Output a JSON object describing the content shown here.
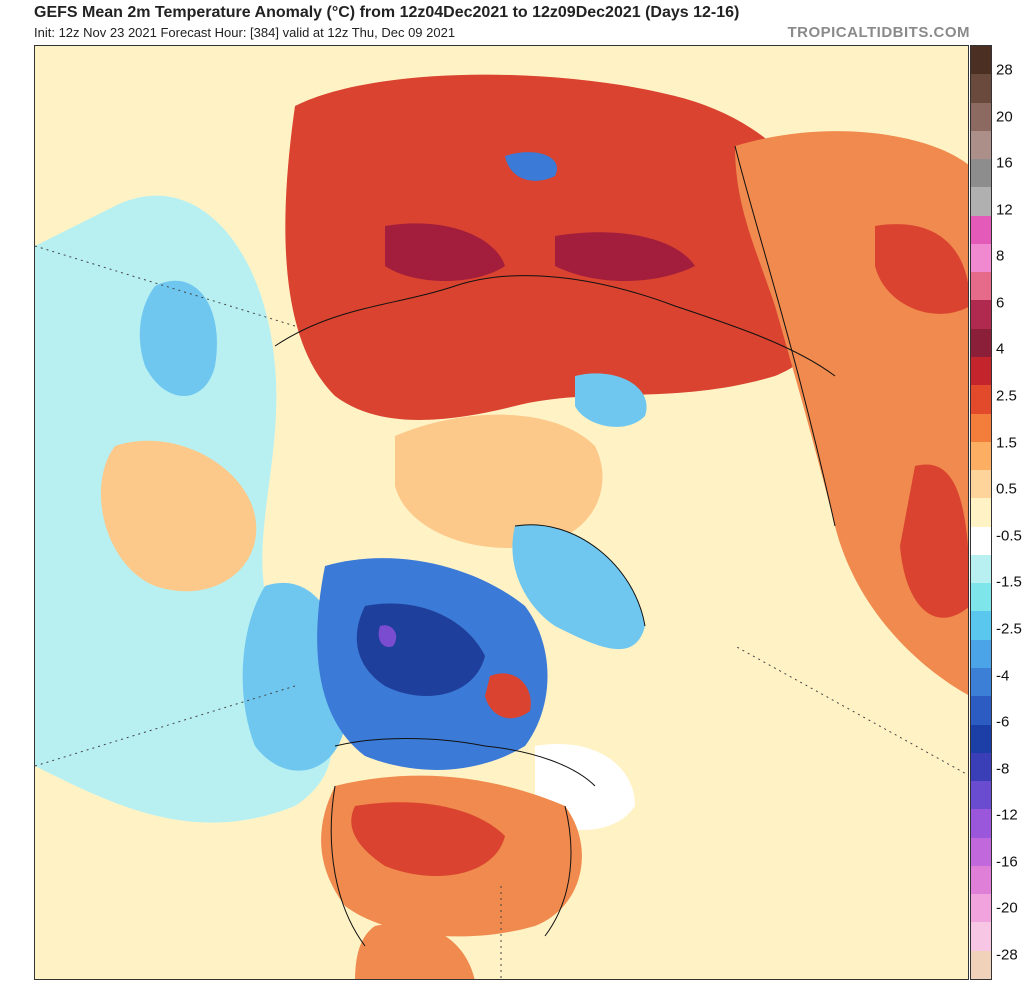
{
  "header": {
    "title": "GEFS Mean 2m Temperature Anomaly (°C) from 12z04Dec2021 to 12z09Dec2021 (Days 12-16)",
    "subtitle": "Init: 12z Nov 23 2021   Forecast Hour: [384]   valid at 12z Thu, Dec 09 2021",
    "credit": "TROPICALTIDBITS.COM"
  },
  "colorbar": {
    "labels": [
      "28",
      "20",
      "16",
      "12",
      "8",
      "6",
      "4",
      "2.5",
      "1.5",
      "0.5",
      "-0.5",
      "-1.5",
      "-2.5",
      "-4",
      "-6",
      "-8",
      "-12",
      "-16",
      "-20",
      "-28"
    ],
    "colors": [
      "#4a2f22",
      "#6b4a3e",
      "#8c6a62",
      "#ad8f8a",
      "#8d8d8d",
      "#b0b0b0",
      "#e45ab8",
      "#f089cf",
      "#e66a8a",
      "#b0294e",
      "#8b1f3a",
      "#c4242c",
      "#e34a2b",
      "#f37d3b",
      "#fcae62",
      "#fed49a",
      "#fff3c6",
      "#ffffff",
      "#b8f0f2",
      "#7ee6ea",
      "#5ac8ee",
      "#4ba3e8",
      "#3c7fd6",
      "#2c5cc2",
      "#1b3fa6",
      "#3a3fb8",
      "#6a4cd0",
      "#9a57dc",
      "#c068dc",
      "#e07fd8",
      "#f0a3dc",
      "#f6c6e4",
      "#f0d2ba"
    ]
  },
  "map": {
    "palette": {
      "very_warm": "#a31e3c",
      "warm": "#d9432f",
      "mild": "#f08a4e",
      "slight_warm": "#fcc98a",
      "near_normal": "#fff3c6",
      "slight_cool": "#b8f0f2",
      "cool": "#6fc7f0",
      "cold": "#3b7ad6",
      "very_cold": "#1e3f9c",
      "extreme_cold": "#7a4cd0"
    }
  }
}
